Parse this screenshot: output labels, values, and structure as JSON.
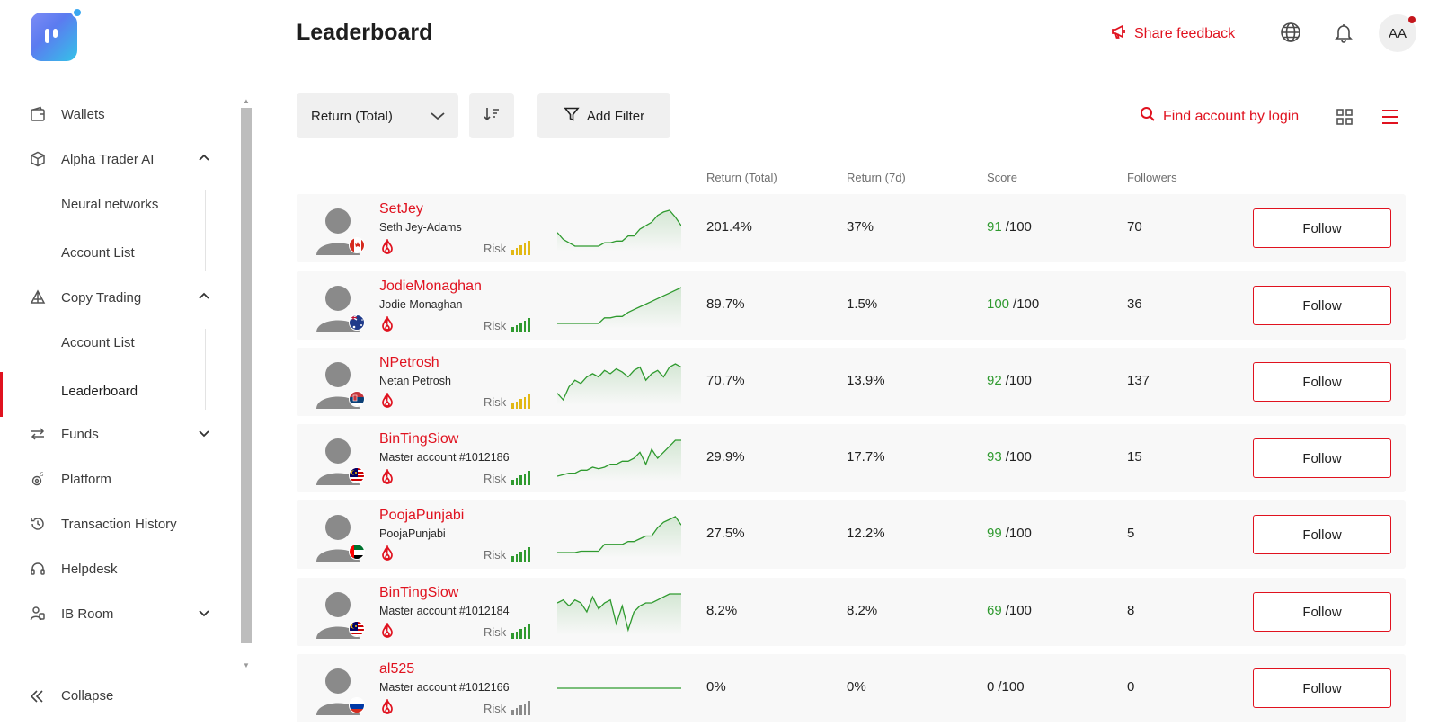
{
  "page": {
    "title": "Leaderboard"
  },
  "header": {
    "feedback_label": "Share feedback",
    "language_icon": "globe-icon",
    "notifications_icon": "bell-icon",
    "avatar_initials": "AA"
  },
  "sidebar": {
    "items": [
      {
        "label": "Wallets",
        "icon": "wallet-icon"
      },
      {
        "label": "Alpha Trader AI",
        "icon": "cube-icon",
        "expanded": true,
        "children": [
          {
            "label": "Neural networks"
          },
          {
            "label": "Account List"
          }
        ]
      },
      {
        "label": "Copy Trading",
        "icon": "copy-trading-icon",
        "expanded": true,
        "children": [
          {
            "label": "Account List"
          },
          {
            "label": "Leaderboard",
            "active": true
          }
        ]
      },
      {
        "label": "Funds",
        "icon": "transfer-icon",
        "expanded": false
      },
      {
        "label": "Platform",
        "icon": "platform-icon"
      },
      {
        "label": "Transaction History",
        "icon": "history-icon"
      },
      {
        "label": "Helpdesk",
        "icon": "headset-icon"
      },
      {
        "label": "IB Room",
        "icon": "ib-room-icon",
        "expanded": false
      }
    ],
    "collapse_label": "Collapse"
  },
  "toolbar": {
    "sort_select_value": "Return (Total)",
    "add_filter_label": "Add Filter",
    "find_label": "Find account by login"
  },
  "table": {
    "columns": [
      "Return (Total)",
      "Return (7d)",
      "Score",
      "Followers"
    ],
    "score_max": "/100",
    "follow_label": "Follow",
    "risk_label": "Risk",
    "rows": [
      {
        "login": "SetJey",
        "name": "Seth Jey-Adams",
        "country": "Canada",
        "risk_level": 5,
        "risk_color": "#e2b814",
        "return_total": "201.4%",
        "return_7d": "37%",
        "score": "91",
        "followers": "70",
        "spark": [
          18,
          14,
          12,
          10,
          10,
          10,
          10,
          10,
          12,
          12,
          13,
          13,
          16,
          16,
          20,
          22,
          24,
          28,
          30,
          31,
          27,
          22
        ]
      },
      {
        "login": "JodieMonaghan",
        "name": "Jodie Monaghan",
        "country": "Australia",
        "risk_level": 5,
        "risk_color": "#2f9a2f",
        "return_total": "89.7%",
        "return_7d": "1.5%",
        "score": "100",
        "followers": "36",
        "spark": [
          4,
          4,
          4,
          4,
          4,
          4,
          4,
          4,
          8,
          8,
          9,
          9,
          12,
          14,
          16,
          18,
          20,
          22,
          24,
          26,
          28,
          30
        ]
      },
      {
        "login": "NPetrosh",
        "name": "Netan Petrosh",
        "country": "Serbia",
        "risk_level": 5,
        "risk_color": "#e2b814",
        "return_total": "70.7%",
        "return_7d": "13.9%",
        "score": "92",
        "followers": "137",
        "spark": [
          10,
          6,
          14,
          18,
          16,
          20,
          22,
          20,
          24,
          22,
          25,
          23,
          20,
          24,
          26,
          18,
          22,
          24,
          20,
          26,
          28,
          26
        ]
      },
      {
        "login": "BinTingSiow",
        "name": "Master account #1012186",
        "country": "Malaysia",
        "risk_level": 5,
        "risk_color": "#2f9a2f",
        "return_total": "29.9%",
        "return_7d": "17.7%",
        "score": "93",
        "followers": "15",
        "spark": [
          6,
          7,
          8,
          8,
          10,
          10,
          12,
          11,
          12,
          14,
          14,
          16,
          16,
          18,
          22,
          14,
          24,
          18,
          22,
          26,
          30,
          30
        ]
      },
      {
        "login": "PoojaPunjabi",
        "name": "PoojaPunjabi",
        "country": "UAE",
        "risk_level": 5,
        "risk_color": "#2f9a2f",
        "return_total": "27.5%",
        "return_7d": "12.2%",
        "score": "99",
        "followers": "5",
        "spark": [
          4,
          4,
          4,
          4,
          5,
          5,
          5,
          5,
          10,
          10,
          10,
          10,
          12,
          12,
          14,
          16,
          16,
          22,
          26,
          28,
          30,
          24
        ]
      },
      {
        "login": "BinTingSiow",
        "name": "Master account #1012184",
        "country": "Malaysia",
        "risk_level": 5,
        "risk_color": "#2f9a2f",
        "return_total": "8.2%",
        "return_7d": "8.2%",
        "score": "69",
        "followers": "8",
        "spark": [
          22,
          24,
          20,
          24,
          22,
          16,
          26,
          18,
          22,
          24,
          8,
          20,
          4,
          16,
          20,
          22,
          22,
          24,
          26,
          28,
          28,
          28
        ]
      },
      {
        "login": "al525",
        "name": "Master account #1012166",
        "country": "Russia",
        "risk_level": 0,
        "risk_color": "#8a8a8a",
        "return_total": "0%",
        "return_7d": "0%",
        "score": "0",
        "followers": "0",
        "spark": [
          16,
          16,
          16,
          16,
          16,
          16,
          16,
          16,
          16,
          16,
          16,
          16,
          16,
          16,
          16,
          16,
          16,
          16,
          16,
          16,
          16,
          16
        ]
      }
    ]
  },
  "colors": {
    "accent": "#e0121f",
    "score_green": "#2f9a2f"
  }
}
